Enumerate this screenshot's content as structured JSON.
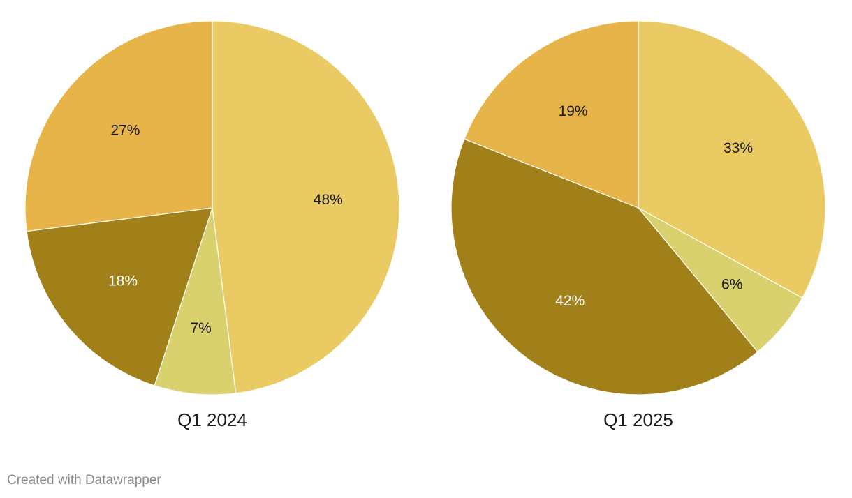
{
  "chart_data": [
    {
      "type": "pie",
      "title": "Q1 2024",
      "start_angle_deg": 0,
      "direction": "clockwise",
      "slices": [
        {
          "value": 48,
          "label": "48%",
          "color": "#EACB63",
          "label_color": "#1a1a1a"
        },
        {
          "value": 7,
          "label": "7%",
          "color": "#D9D16E",
          "label_color": "#1a1a1a"
        },
        {
          "value": 18,
          "label": "18%",
          "color": "#A18019",
          "label_color": "#ffffff"
        },
        {
          "value": 27,
          "label": "27%",
          "color": "#E6B449",
          "label_color": "#1a1a1a"
        }
      ]
    },
    {
      "type": "pie",
      "title": "Q1 2025",
      "start_angle_deg": 0,
      "direction": "clockwise",
      "slices": [
        {
          "value": 33,
          "label": "33%",
          "color": "#EACB63",
          "label_color": "#1a1a1a"
        },
        {
          "value": 6,
          "label": "6%",
          "color": "#D9D16E",
          "label_color": "#1a1a1a"
        },
        {
          "value": 42,
          "label": "42%",
          "color": "#A18019",
          "label_color": "#ffffff"
        },
        {
          "value": 19,
          "label": "19%",
          "color": "#E6B449",
          "label_color": "#1a1a1a"
        }
      ]
    }
  ],
  "footer": {
    "credit": "Created with Datawrapper"
  }
}
